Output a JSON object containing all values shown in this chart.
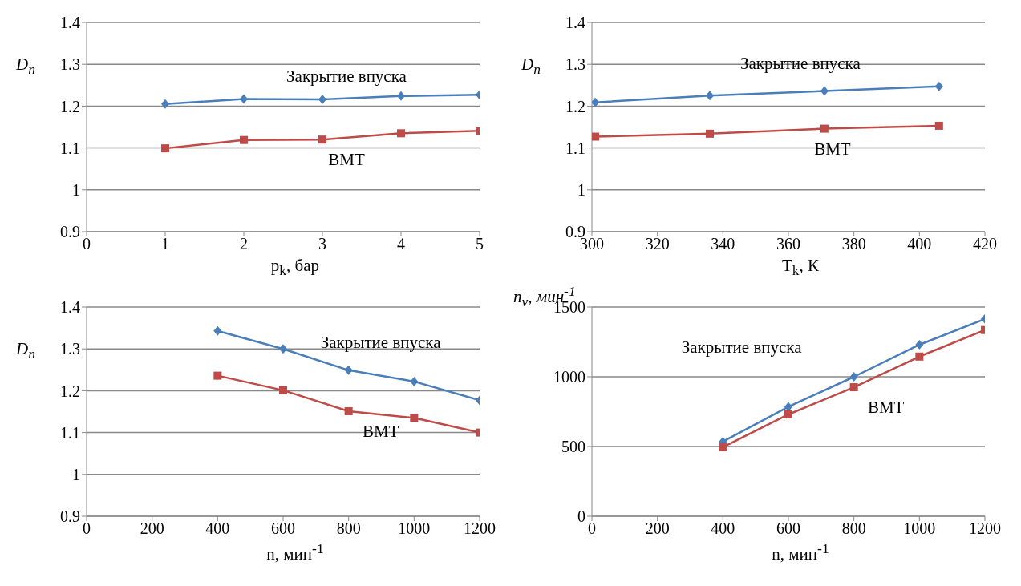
{
  "chart_data": [
    {
      "type": "line",
      "xlabel": "p$_{k}$, бар",
      "ylabel": "D$_{n}$",
      "x": [
        1,
        2,
        3,
        4,
        5
      ],
      "xlim": [
        0,
        5
      ],
      "xticks": [
        0,
        1,
        2,
        3,
        4,
        5
      ],
      "ylim": [
        0.9,
        1.4
      ],
      "yticks": [
        0.9,
        1,
        1.1,
        1.2,
        1.3,
        1.4
      ],
      "grid": "y",
      "series": [
        {
          "name": "Закрытие впуска",
          "color": "#4a7ebb",
          "marker": "diamond",
          "values": [
            1.205,
            1.217,
            1.216,
            1.224,
            1.227
          ]
        },
        {
          "name": "ВМТ",
          "color": "#be4b48",
          "marker": "square",
          "values": [
            1.099,
            1.119,
            1.12,
            1.135,
            1.141
          ]
        }
      ]
    },
    {
      "type": "line",
      "xlabel": "T$_{k}$, К",
      "ylabel": "D$_{n}$",
      "x": [
        301,
        336,
        371,
        406
      ],
      "xlim": [
        300,
        420
      ],
      "xticks": [
        300,
        320,
        340,
        360,
        380,
        400,
        420
      ],
      "ylim": [
        0.9,
        1.4
      ],
      "yticks": [
        0.9,
        1,
        1.1,
        1.2,
        1.3,
        1.4
      ],
      "grid": "y",
      "series": [
        {
          "name": "Закрытие впуска",
          "color": "#4a7ebb",
          "marker": "diamond",
          "values": [
            1.209,
            1.225,
            1.236,
            1.247
          ]
        },
        {
          "name": "ВМТ",
          "color": "#be4b48",
          "marker": "square",
          "values": [
            1.127,
            1.134,
            1.146,
            1.153
          ]
        }
      ]
    },
    {
      "type": "line",
      "xlabel": "n, мин$^{-1}$",
      "ylabel": "D$_{n}$",
      "x": [
        400,
        600,
        800,
        1000,
        1200
      ],
      "xlim": [
        0,
        1200
      ],
      "xticks": [
        0,
        200,
        400,
        600,
        800,
        1000,
        1200
      ],
      "ylim": [
        0.9,
        1.4
      ],
      "yticks": [
        0.9,
        1,
        1.1,
        1.2,
        1.3,
        1.4
      ],
      "grid": "y",
      "series": [
        {
          "name": "Закрытие впуска",
          "color": "#4a7ebb",
          "marker": "diamond",
          "values": [
            1.343,
            1.3,
            1.249,
            1.222,
            1.177
          ]
        },
        {
          "name": "ВМТ",
          "color": "#be4b48",
          "marker": "square",
          "values": [
            1.236,
            1.201,
            1.151,
            1.135,
            1.1
          ]
        }
      ]
    },
    {
      "type": "line",
      "xlabel": "n, мин$^{-1}$",
      "ylabel": "n$_{v}$, мин$^{-1}$",
      "x": [
        400,
        600,
        800,
        1000,
        1200
      ],
      "xlim": [
        0,
        1200
      ],
      "xticks": [
        0,
        200,
        400,
        600,
        800,
        1000,
        1200
      ],
      "ylim": [
        0,
        1500
      ],
      "yticks": [
        0,
        500,
        1000,
        1500
      ],
      "grid": "y",
      "series": [
        {
          "name": "Закрытие впуска",
          "color": "#4a7ebb",
          "marker": "diamond",
          "values": [
            535,
            785,
            1000,
            1230,
            1415
          ]
        },
        {
          "name": "ВМТ",
          "color": "#be4b48",
          "marker": "square",
          "values": [
            495,
            730,
            925,
            1145,
            1335
          ]
        }
      ]
    }
  ]
}
